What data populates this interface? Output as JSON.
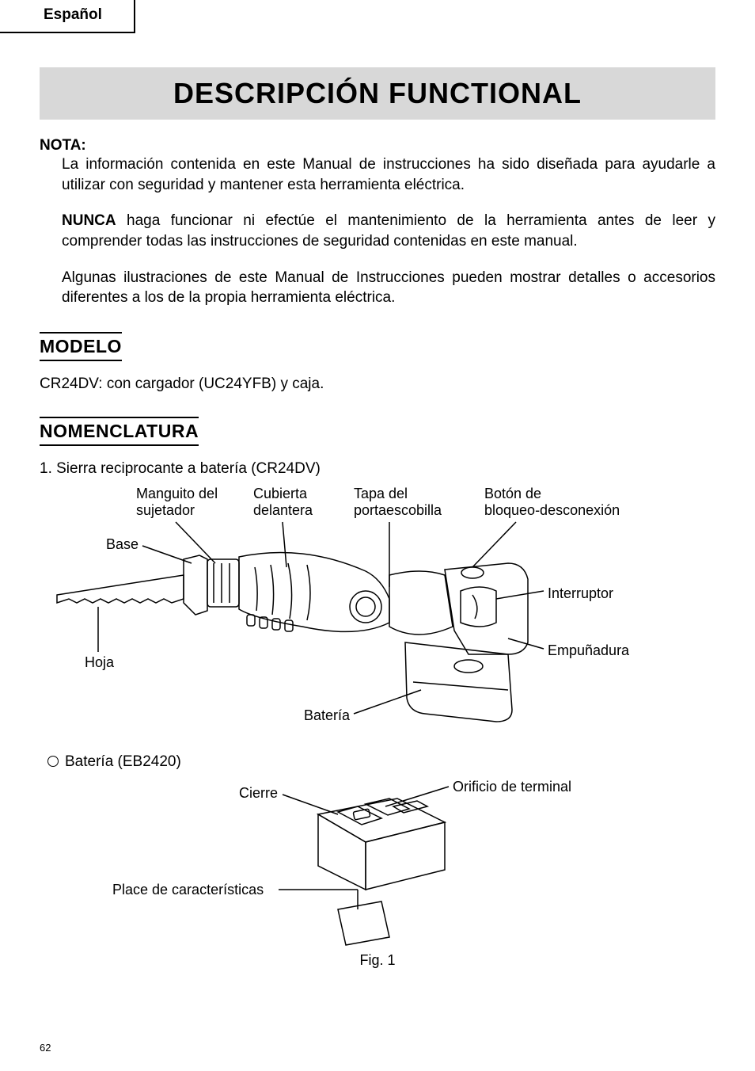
{
  "lang_tab": "Español",
  "main_title": "DESCRIPCIÓN FUNCTIONAL",
  "nota": {
    "label": "NOTA:",
    "p1": "La información contenida en este Manual de instrucciones ha sido diseñada para ayudarle a utilizar con seguridad y mantener esta herramienta eléctrica.",
    "p2_bold": "NUNCA",
    "p2_rest": " haga funcionar ni efectúe el mantenimiento de la herramienta antes de leer y comprender todas las instrucciones de seguridad contenidas en este manual.",
    "p3": "Algunas ilustraciones de este Manual de Instrucciones pueden mostrar detalles o accesorios diferentes a los de la propia herramienta eléctrica."
  },
  "modelo": {
    "heading": "MODELO",
    "text": "CR24DV:  con cargador (UC24YFB) y caja."
  },
  "nomen": {
    "heading": "NOMENCLATURA",
    "item1": "1.  Sierra reciprocante a batería (CR24DV)",
    "item2": "Batería (EB2420)",
    "fig": "Fig. 1"
  },
  "labels": {
    "manguito": "Manguito del\nsujetador",
    "cubierta": "Cubierta\ndelantera",
    "tapa": "Tapa del\nportaescobilla",
    "boton": "Botón de\nbloqueo-desconexión",
    "base": "Base",
    "interruptor": "Interruptor",
    "hoja": "Hoja",
    "empunadura": "Empuñadura",
    "bateria": "Batería",
    "cierre": "Cierre",
    "orificio": "Orificio de terminal",
    "placa": "Place de características"
  },
  "page_num": "62",
  "colors": {
    "title_bg": "#d8d8d8",
    "text": "#000000",
    "page_bg": "#ffffff"
  },
  "fonts": {
    "body_size": 19,
    "title_size": 36,
    "section_head_size": 23,
    "label_size": 18
  }
}
